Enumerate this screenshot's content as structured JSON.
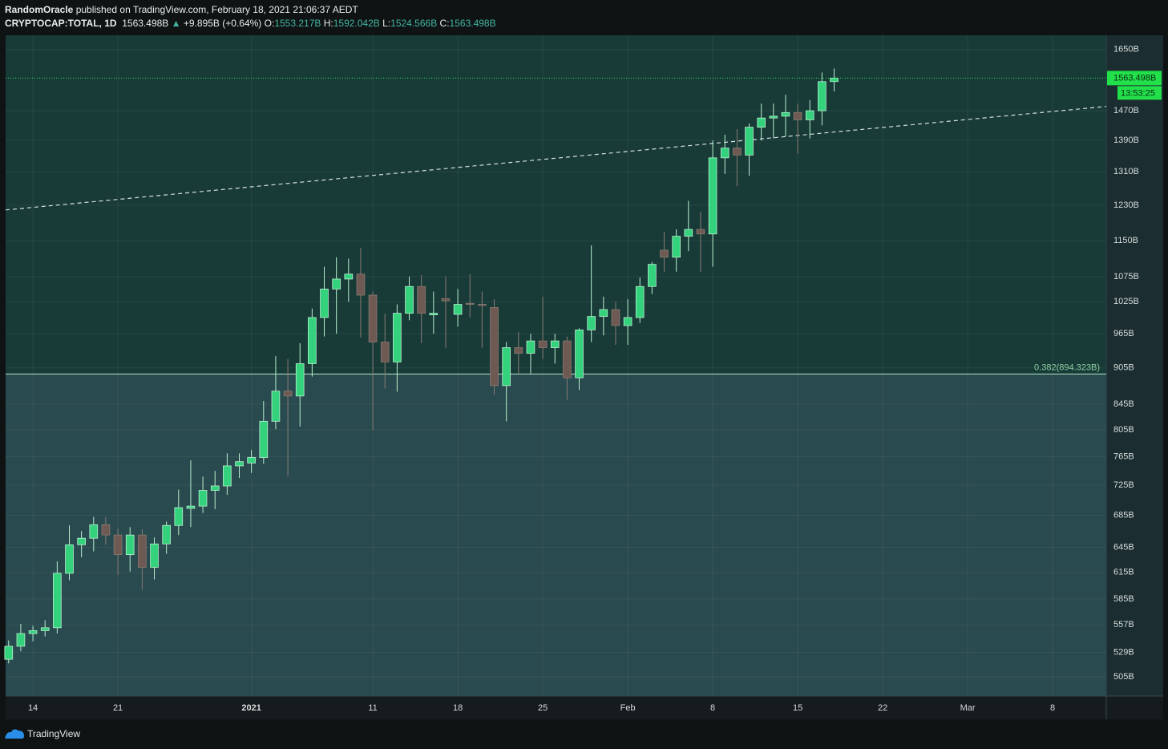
{
  "header": {
    "author": "RandomOracle",
    "published": "published on TradingView.com, February 18, 2021 21:06:37 AEDT",
    "symbol": "CRYPTOCAP:TOTAL, 1D",
    "price": "1563.498B",
    "change": "+9.895B (+0.64%)",
    "ohlc": [
      {
        "key": "O:",
        "value": "1553.217B"
      },
      {
        "key": "H:",
        "value": "1592.042B"
      },
      {
        "key": "L:",
        "value": "1524.566B"
      },
      {
        "key": "C:",
        "value": "1563.498B"
      }
    ]
  },
  "footer": {
    "brand": "TradingView"
  },
  "chart_data": {
    "type": "candlestick",
    "log_scale": true,
    "grid": true,
    "up_color": "#35d27d",
    "down_color": "#6e5a53",
    "x": [
      "2020-12-12",
      "2020-12-13",
      "2020-12-14",
      "2020-12-15",
      "2020-12-16",
      "2020-12-17",
      "2020-12-18",
      "2020-12-19",
      "2020-12-20",
      "2020-12-21",
      "2020-12-22",
      "2020-12-23",
      "2020-12-24",
      "2020-12-25",
      "2020-12-26",
      "2020-12-27",
      "2020-12-28",
      "2020-12-29",
      "2020-12-30",
      "2020-12-31",
      "2021-01-01",
      "2021-01-02",
      "2021-01-03",
      "2021-01-04",
      "2021-01-05",
      "2021-01-06",
      "2021-01-07",
      "2021-01-08",
      "2021-01-09",
      "2021-01-10",
      "2021-01-11",
      "2021-01-12",
      "2021-01-13",
      "2021-01-14",
      "2021-01-15",
      "2021-01-16",
      "2021-01-17",
      "2021-01-18",
      "2021-01-19",
      "2021-01-20",
      "2021-01-21",
      "2021-01-22",
      "2021-01-23",
      "2021-01-24",
      "2021-01-25",
      "2021-01-26",
      "2021-01-27",
      "2021-01-28",
      "2021-01-29",
      "2021-01-30",
      "2021-01-31",
      "2021-02-01",
      "2021-02-02",
      "2021-02-03",
      "2021-02-04",
      "2021-02-05",
      "2021-02-06",
      "2021-02-07",
      "2021-02-08",
      "2021-02-09",
      "2021-02-10",
      "2021-02-11",
      "2021-02-12",
      "2021-02-13",
      "2021-02-14",
      "2021-02-15",
      "2021-02-16",
      "2021-02-17",
      "2021-02-18"
    ],
    "open": [
      522,
      535,
      548,
      551,
      554,
      614,
      648,
      656,
      673,
      660,
      636,
      660,
      621,
      649,
      672,
      694,
      697,
      718,
      724,
      752,
      756,
      764,
      818,
      866,
      858,
      912,
      995,
      1050,
      1070,
      1080,
      1038,
      950,
      915,
      1003,
      1055,
      1000,
      1031,
      1001,
      1022,
      1020,
      1014,
      875,
      940,
      930,
      952,
      940,
      952,
      888,
      972,
      997,
      1010,
      980,
      995,
      1055,
      1130,
      1115,
      1160,
      1175,
      1165,
      1345,
      1370,
      1352,
      1425,
      1450,
      1455,
      1465,
      1445,
      1470,
      1553.217
    ],
    "high": [
      541,
      558,
      556,
      562,
      628,
      672,
      665,
      683,
      683,
      668,
      670,
      667,
      657,
      677,
      719,
      760,
      737,
      745,
      770,
      770,
      775,
      850,
      925,
      920,
      948,
      1012,
      1095,
      1115,
      1112,
      1135,
      1045,
      1002,
      1020,
      1075,
      1078,
      1045,
      1075,
      1050,
      1080,
      1045,
      1030,
      950,
      968,
      965,
      1035,
      965,
      960,
      975,
      1140,
      1035,
      1025,
      1030,
      1073,
      1105,
      1170,
      1175,
      1240,
      1215,
      1390,
      1405,
      1420,
      1435,
      1490,
      1490,
      1515,
      1490,
      1500,
      1580,
      1592.042
    ],
    "low": [
      518,
      530,
      540,
      545,
      548,
      606,
      633,
      640,
      648,
      612,
      616,
      595,
      607,
      637,
      660,
      670,
      688,
      693,
      712,
      735,
      742,
      755,
      806,
      738,
      810,
      890,
      960,
      965,
      1025,
      958,
      805,
      870,
      865,
      990,
      948,
      965,
      940,
      978,
      995,
      940,
      860,
      818,
      895,
      895,
      920,
      912,
      852,
      868,
      950,
      962,
      945,
      945,
      985,
      1040,
      1085,
      1085,
      1128,
      1085,
      1095,
      1305,
      1275,
      1300,
      1390,
      1395,
      1400,
      1355,
      1395,
      1430,
      1524.566
    ],
    "close": [
      535,
      548,
      551,
      554,
      614,
      648,
      656,
      673,
      660,
      636,
      660,
      621,
      649,
      672,
      695,
      697,
      718,
      724,
      752,
      758,
      764,
      818,
      866,
      858,
      912,
      995,
      1050,
      1070,
      1080,
      1038,
      950,
      915,
      1003,
      1055,
      1003,
      1003,
      1027,
      1020,
      1020,
      1018,
      875,
      940,
      930,
      952,
      940,
      952,
      888,
      972,
      997,
      1010,
      980,
      995,
      1055,
      1100,
      1115,
      1160,
      1175,
      1165,
      1345,
      1370,
      1352,
      1425,
      1450,
      1455,
      1465,
      1445,
      1470,
      1553,
      1563.498
    ],
    "xlim": [
      "2020-12-11T18:00",
      "2021-03-12T10:00"
    ],
    "xticks": [
      {
        "value": "2020-12-14",
        "label": "14"
      },
      {
        "value": "2020-12-21",
        "label": "21"
      },
      {
        "value": "2021-01-01",
        "label": "2021"
      },
      {
        "value": "2021-01-11",
        "label": "11"
      },
      {
        "value": "2021-01-18",
        "label": "18"
      },
      {
        "value": "2021-01-25",
        "label": "25"
      },
      {
        "value": "2021-02-01",
        "label": "Feb"
      },
      {
        "value": "2021-02-08",
        "label": "8"
      },
      {
        "value": "2021-02-15",
        "label": "15"
      },
      {
        "value": "2021-02-22",
        "label": "22"
      },
      {
        "value": "2021-03-01",
        "label": "Mar"
      },
      {
        "value": "2021-03-08",
        "label": "8"
      }
    ],
    "ylim": [
      487,
      1695
    ],
    "yticks": [
      {
        "value": 1650,
        "label": "1650B"
      },
      {
        "value": 1470,
        "label": "1470B"
      },
      {
        "value": 1390,
        "label": "1390B"
      },
      {
        "value": 1310,
        "label": "1310B"
      },
      {
        "value": 1230,
        "label": "1230B"
      },
      {
        "value": 1150,
        "label": "1150B"
      },
      {
        "value": 1075,
        "label": "1075B"
      },
      {
        "value": 1025,
        "label": "1025B"
      },
      {
        "value": 965,
        "label": "965B"
      },
      {
        "value": 905,
        "label": "905B"
      },
      {
        "value": 845,
        "label": "845B"
      },
      {
        "value": 805,
        "label": "805B"
      },
      {
        "value": 765,
        "label": "765B"
      },
      {
        "value": 725,
        "label": "725B"
      },
      {
        "value": 685,
        "label": "685B"
      },
      {
        "value": 645,
        "label": "645B"
      },
      {
        "value": 615,
        "label": "615B"
      },
      {
        "value": 585,
        "label": "585B"
      },
      {
        "value": 557,
        "label": "557B"
      },
      {
        "value": 529,
        "label": "529B"
      },
      {
        "value": 505,
        "label": "505B"
      }
    ],
    "fib_level": {
      "value": 894.323,
      "label": "0.382(894.323B)"
    },
    "last_price": {
      "value": 1563.498,
      "label": "1563.498B"
    },
    "countdown": "13:53:25",
    "trendline": [
      {
        "x": "2020-12-11T18:00",
        "y": 1219
      },
      {
        "x": "2021-03-12T10:00",
        "y": 1482
      }
    ]
  }
}
